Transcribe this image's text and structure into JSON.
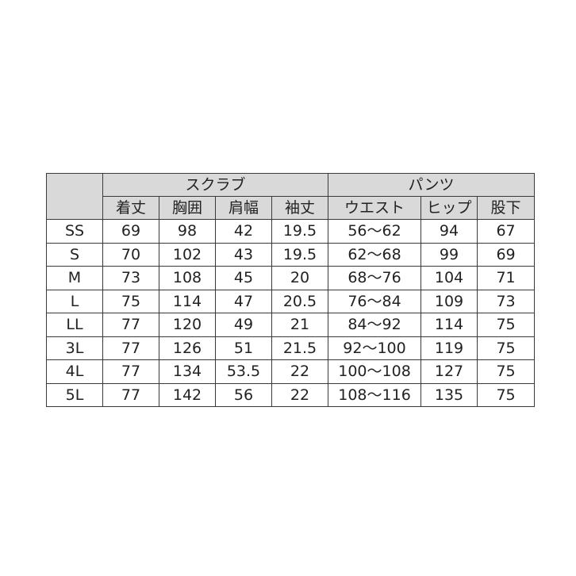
{
  "groups": {
    "scrub": "スクラブ",
    "pants": "パンツ"
  },
  "columns": [
    "着丈",
    "胸囲",
    "肩幅",
    "袖丈",
    "ウエスト",
    "ヒップ",
    "股下"
  ],
  "rows": [
    {
      "size": "SS",
      "values": [
        "69",
        "98",
        "42",
        "19.5",
        "56〜62",
        "94",
        "67"
      ]
    },
    {
      "size": "S",
      "values": [
        "70",
        "102",
        "43",
        "19.5",
        "62〜68",
        "99",
        "69"
      ]
    },
    {
      "size": "M",
      "values": [
        "73",
        "108",
        "45",
        "20",
        "68〜76",
        "104",
        "71"
      ]
    },
    {
      "size": "L",
      "values": [
        "75",
        "114",
        "47",
        "20.5",
        "76〜84",
        "109",
        "73"
      ]
    },
    {
      "size": "LL",
      "values": [
        "77",
        "120",
        "49",
        "21",
        "84〜92",
        "114",
        "75"
      ]
    },
    {
      "size": "3L",
      "values": [
        "77",
        "126",
        "51",
        "21.5",
        "92〜100",
        "119",
        "75"
      ]
    },
    {
      "size": "4L",
      "values": [
        "77",
        "134",
        "53.5",
        "22",
        "100〜108",
        "127",
        "75"
      ]
    },
    {
      "size": "5L",
      "values": [
        "77",
        "142",
        "56",
        "22",
        "108〜116",
        "135",
        "75"
      ]
    }
  ],
  "colors": {
    "header_bg": "#d9d9d9",
    "border": "#3a3a3a"
  }
}
